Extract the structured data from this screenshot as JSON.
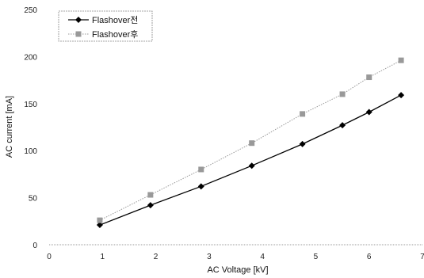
{
  "chart_data": {
    "type": "line",
    "title": "",
    "xlabel": "AC Voltage [kV]",
    "ylabel": "AC current [mA]",
    "xlim": [
      0,
      7
    ],
    "ylim": [
      0,
      250
    ],
    "x_ticks": [
      "0",
      "1",
      "2",
      "3",
      "4",
      "5",
      "6",
      "7"
    ],
    "y_ticks": [
      "0",
      "50",
      "100",
      "150",
      "200",
      "250"
    ],
    "grid": false,
    "legend_position": "top-left",
    "series": [
      {
        "name": "Flashover전",
        "color": "#000000",
        "marker": "diamond",
        "points": [
          [
            0.95,
            21
          ],
          [
            1.9,
            42
          ],
          [
            2.85,
            62
          ],
          [
            3.8,
            84
          ],
          [
            4.75,
            107
          ],
          [
            5.5,
            127
          ],
          [
            6.0,
            141
          ],
          [
            6.6,
            159
          ]
        ]
      },
      {
        "name": "Flashover후",
        "color": "#999999",
        "marker": "square",
        "points": [
          [
            0.95,
            26
          ],
          [
            1.9,
            53
          ],
          [
            2.85,
            80
          ],
          [
            3.8,
            108
          ],
          [
            4.75,
            139
          ],
          [
            5.5,
            160
          ],
          [
            6.0,
            178
          ],
          [
            6.6,
            196
          ]
        ]
      }
    ]
  }
}
